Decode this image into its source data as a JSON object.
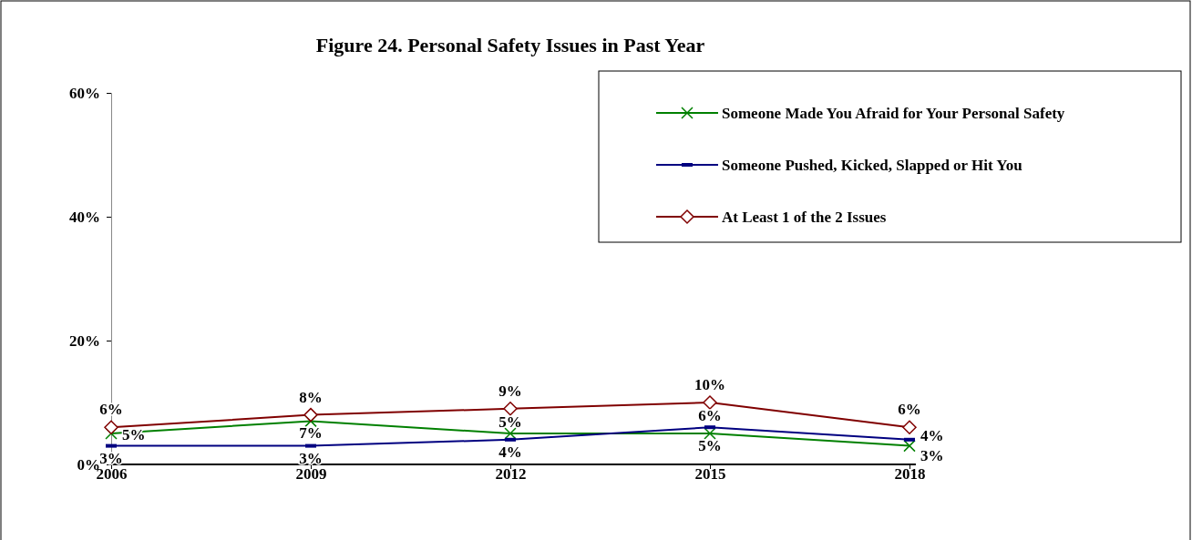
{
  "chart_data": {
    "type": "line",
    "title": "Figure 24. Personal Safety Issues in Past Year",
    "categories": [
      "2006",
      "2009",
      "2012",
      "2015",
      "2018"
    ],
    "series": [
      {
        "name": "Someone Made You Afraid for Your Personal Safety",
        "color": "#008000",
        "marker": "cross",
        "values": [
          5,
          7,
          5,
          5,
          3
        ],
        "value_labels": [
          "5%",
          "7%",
          "5%",
          "5%",
          "3%"
        ]
      },
      {
        "name": "Someone Pushed, Kicked, Slapped or Hit You",
        "color": "#000080",
        "marker": "square",
        "values": [
          3,
          3,
          4,
          6,
          4
        ],
        "value_labels": [
          "3%",
          "3%",
          "4%",
          "6%",
          "4%"
        ]
      },
      {
        "name": "At Least 1 of the 2 Issues",
        "color": "#800000",
        "marker": "diamond",
        "values": [
          6,
          8,
          9,
          10,
          6
        ],
        "value_labels": [
          "6%",
          "8%",
          "9%",
          "10%",
          "6%"
        ]
      }
    ],
    "ylim": [
      0,
      60
    ],
    "yticks": [
      {
        "value": 0,
        "label": "0%"
      },
      {
        "value": 20,
        "label": "20%"
      },
      {
        "value": 40,
        "label": "40%"
      },
      {
        "value": 60,
        "label": "60%"
      }
    ],
    "legend": "top right",
    "grid": false
  }
}
